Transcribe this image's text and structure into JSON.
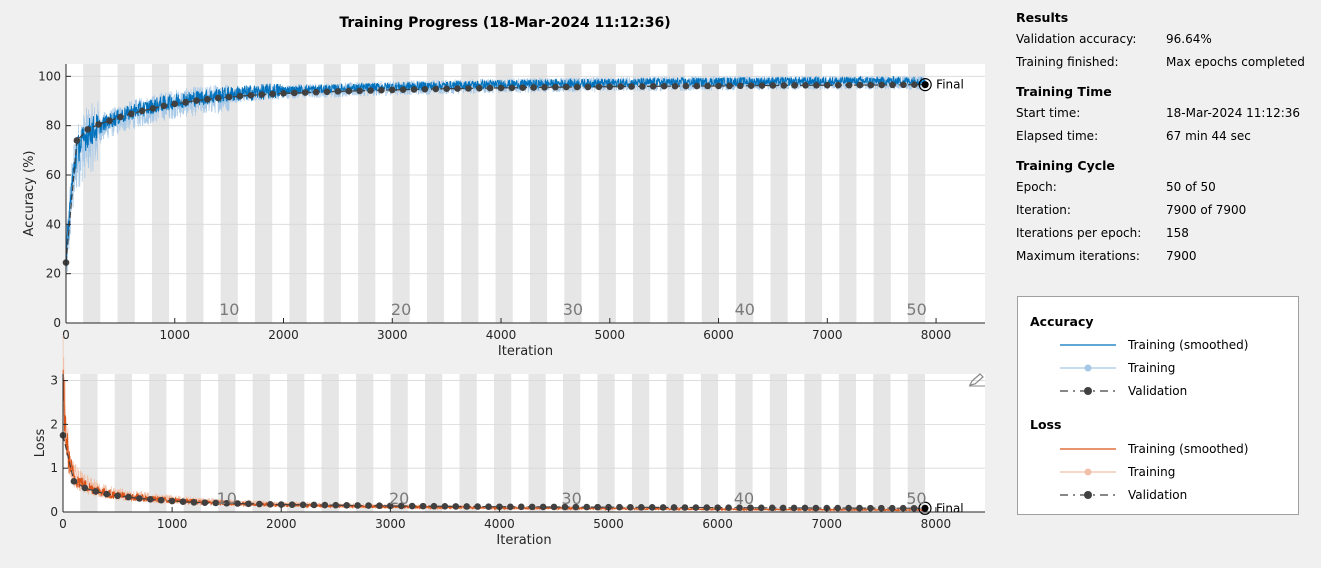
{
  "title": "Training Progress (18-Mar-2024 11:12:36)",
  "results": {
    "heading": "Results",
    "rows": [
      {
        "k": "Validation accuracy:",
        "v": "96.64%"
      },
      {
        "k": "Training finished:",
        "v": "Max epochs completed"
      }
    ]
  },
  "training_time": {
    "heading": "Training Time",
    "rows": [
      {
        "k": "Start time:",
        "v": "18-Mar-2024 11:12:36"
      },
      {
        "k": "Elapsed time:",
        "v": "67 min 44 sec"
      }
    ]
  },
  "training_cycle": {
    "heading": "Training Cycle",
    "rows": [
      {
        "k": "Epoch:",
        "v": "50 of 50"
      },
      {
        "k": "Iteration:",
        "v": "7900 of 7900"
      },
      {
        "k": "Iterations per epoch:",
        "v": "158"
      },
      {
        "k": "Maximum iterations:",
        "v": "7900"
      }
    ]
  },
  "legend": {
    "accuracy_heading": "Accuracy",
    "loss_heading": "Loss",
    "items": {
      "smoothed": "Training (smoothed)",
      "training": "Training",
      "validation": "Validation"
    }
  },
  "colors": {
    "acc_smoothed": "#0072bd",
    "acc_raw": "#a7c8e6",
    "loss_smoothed": "#d95319",
    "loss_raw": "#f0c0a8",
    "validation": "#404040",
    "epoch_band": "#e6e6e6"
  },
  "chart_data": [
    {
      "type": "line",
      "xlabel": "Iteration",
      "ylabel": "Accuracy (%)",
      "xlim": [
        0,
        8450
      ],
      "ylim": [
        0,
        105
      ],
      "xticks": [
        0,
        1000,
        2000,
        3000,
        4000,
        5000,
        6000,
        7000,
        8000
      ],
      "yticks": [
        0,
        20,
        40,
        60,
        80,
        100
      ],
      "epoch_labels": [
        "10",
        "20",
        "30",
        "40",
        "50"
      ],
      "final_label": "Final",
      "iterations_per_epoch": 158,
      "max_iterations": 7900,
      "validation": {
        "x": [
          0,
          100,
          200,
          300,
          400,
          500,
          600,
          700,
          800,
          900,
          1000,
          1200,
          1400,
          1600,
          1800,
          2000,
          2500,
          3000,
          3500,
          4000,
          4500,
          5000,
          5500,
          6000,
          6500,
          7000,
          7500,
          7900
        ],
        "y": [
          24.5,
          74,
          78.5,
          80.5,
          82,
          83.5,
          84.8,
          86,
          87,
          88,
          88.8,
          90.2,
          91.2,
          92,
          92.6,
          93.1,
          93.9,
          94.5,
          95,
          95.3,
          95.6,
          95.8,
          96,
          96.1,
          96.3,
          96.4,
          96.5,
          96.64
        ]
      },
      "smoothed": {
        "x": [
          0,
          50,
          100,
          200,
          400,
          600,
          800,
          1000,
          1500,
          2000,
          3000,
          4000,
          5000,
          6000,
          7000,
          7900
        ],
        "y": [
          25,
          55,
          70,
          77,
          82,
          85.5,
          88,
          90,
          92.8,
          94.3,
          95.8,
          96.8,
          97.3,
          97.8,
          98,
          98.2
        ]
      },
      "final_validation": 96.64
    },
    {
      "type": "line",
      "xlabel": "Iteration",
      "ylabel": "Loss",
      "xlim": [
        0,
        8450
      ],
      "ylim": [
        0,
        3.15
      ],
      "xticks": [
        0,
        1000,
        2000,
        3000,
        4000,
        5000,
        6000,
        7000,
        8000
      ],
      "yticks": [
        0,
        1,
        2,
        3
      ],
      "epoch_labels": [
        "10",
        "20",
        "30",
        "40",
        "50"
      ],
      "final_label": "Final",
      "iterations_per_epoch": 158,
      "max_iterations": 7900,
      "validation": {
        "x": [
          0,
          100,
          200,
          300,
          400,
          500,
          600,
          700,
          800,
          1000,
          1200,
          1500,
          2000,
          2500,
          3000,
          3500,
          4000,
          4500,
          5000,
          5500,
          6000,
          6500,
          7000,
          7500,
          7900
        ],
        "y": [
          1.75,
          0.7,
          0.55,
          0.47,
          0.41,
          0.37,
          0.34,
          0.31,
          0.29,
          0.25,
          0.22,
          0.2,
          0.17,
          0.155,
          0.14,
          0.13,
          0.12,
          0.115,
          0.11,
          0.105,
          0.1,
          0.095,
          0.09,
          0.088,
          0.085
        ]
      },
      "smoothed": {
        "x": [
          0,
          20,
          50,
          100,
          200,
          400,
          600,
          800,
          1000,
          1500,
          2000,
          3000,
          4000,
          5000,
          6000,
          7000,
          7900
        ],
        "y": [
          2.9,
          2.0,
          1.2,
          0.8,
          0.6,
          0.42,
          0.35,
          0.3,
          0.26,
          0.2,
          0.16,
          0.12,
          0.09,
          0.08,
          0.06,
          0.05,
          0.045
        ]
      }
    }
  ]
}
